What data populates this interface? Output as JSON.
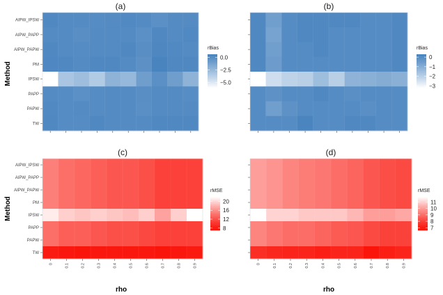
{
  "chart_data": {
    "type": "heatmap",
    "xlabel": "rho",
    "ylabel": "Method",
    "methods": [
      "AIPW_IPSW",
      "AIPW_PAPP",
      "AIPW_PAPW",
      "PM",
      "IPSW",
      "PAPP",
      "PAPW",
      "TW"
    ],
    "rho": [
      "0",
      "0.1",
      "0.2",
      "0.3",
      "0.4",
      "0.5",
      "0.6",
      "0.7",
      "0.8",
      "0.9"
    ],
    "panels": [
      {
        "title": "(a)",
        "legend_title": "rBias",
        "colormap": "blue",
        "legend_ticks": [
          "0.0",
          "−2.5",
          "−5.0"
        ],
        "legend_tick_values": [
          0,
          -2.5,
          -5.0
        ],
        "range": [
          -6.0,
          0.6
        ],
        "values": [
          [
            0.2,
            0.1,
            0.05,
            0.0,
            0.1,
            0.15,
            0.05,
            -0.2,
            0.05,
            0.1
          ],
          [
            0.1,
            0.05,
            -0.1,
            0.05,
            0.1,
            0.05,
            -0.2,
            0.2,
            0.1,
            0.15
          ],
          [
            0.2,
            0.1,
            0.0,
            0.1,
            0.1,
            0.2,
            -0.1,
            0.25,
            0.15,
            0.1
          ],
          [
            0.3,
            0.2,
            0.1,
            0.2,
            0.2,
            0.1,
            -0.3,
            0.5,
            0.2,
            0.2
          ],
          [
            -6.0,
            -3.2,
            -2.8,
            -3.5,
            -2.2,
            -2.5,
            -1.0,
            -0.2,
            -1.0,
            -2.2
          ],
          [
            0.1,
            0.0,
            -0.2,
            0.0,
            0.1,
            0.05,
            -0.1,
            0.1,
            0.1,
            -0.05
          ],
          [
            0.15,
            0.0,
            0.1,
            0.0,
            0.05,
            0.05,
            -0.15,
            0.1,
            0.05,
            0.1
          ],
          [
            0.2,
            0.0,
            0.0,
            0.2,
            0.1,
            0.1,
            0.1,
            0.2,
            0.2,
            0.2
          ]
        ]
      },
      {
        "title": "(b)",
        "legend_title": "rBias",
        "colormap": "blue",
        "legend_ticks": [
          "0",
          "−1",
          "−2",
          "−3"
        ],
        "legend_tick_values": [
          0,
          -1,
          -2,
          -3
        ],
        "range": [
          -3.2,
          0.3
        ],
        "values": [
          [
            0.1,
            -0.6,
            0.0,
            0.1,
            0.1,
            0.1,
            0.1,
            0.0,
            0.0,
            0.1
          ],
          [
            0.1,
            -0.7,
            0.0,
            0.1,
            0.1,
            0.0,
            0.0,
            0.0,
            0.0,
            0.1
          ],
          [
            0.1,
            -0.6,
            0.0,
            0.0,
            0.1,
            0.0,
            0.0,
            0.0,
            0.0,
            0.1
          ],
          [
            0.1,
            -0.5,
            0.0,
            0.0,
            0.0,
            0.0,
            0.0,
            0.0,
            0.0,
            0.1
          ],
          [
            -3.2,
            -2.4,
            -2.1,
            -2.0,
            -1.5,
            -2.0,
            -1.2,
            -1.1,
            -1.0,
            -1.1
          ],
          [
            0.0,
            -0.2,
            0.0,
            0.0,
            0.1,
            0.0,
            -0.1,
            0.0,
            0.0,
            0.0
          ],
          [
            0.0,
            -0.6,
            -0.2,
            0.0,
            0.0,
            0.0,
            0.0,
            -0.1,
            0.0,
            0.0
          ],
          [
            0.0,
            0.0,
            0.0,
            0.2,
            0.0,
            0.0,
            0.1,
            0.1,
            0.0,
            0.0
          ]
        ]
      },
      {
        "title": "(c)",
        "legend_title": "rMSE",
        "colormap": "red",
        "legend_ticks": [
          "20",
          "16",
          "12",
          "8"
        ],
        "legend_tick_values": [
          20,
          16,
          12,
          8
        ],
        "range": [
          7.0,
          22.0
        ],
        "values": [
          [
            15.0,
            14.0,
            13.5,
            13.0,
            12.5,
            12.5,
            12.0,
            11.0,
            11.0,
            11.0
          ],
          [
            15.0,
            14.0,
            13.5,
            13.0,
            12.5,
            12.5,
            12.0,
            11.0,
            11.0,
            11.0
          ],
          [
            15.0,
            14.0,
            13.5,
            13.0,
            12.5,
            12.5,
            12.0,
            11.0,
            11.0,
            11.0
          ],
          [
            15.0,
            14.0,
            13.5,
            13.0,
            12.5,
            12.5,
            12.0,
            11.0,
            11.0,
            11.0
          ],
          [
            21.0,
            19.5,
            19.0,
            19.5,
            19.0,
            18.5,
            19.5,
            17.0,
            19.5,
            22.0
          ],
          [
            14.0,
            13.0,
            13.0,
            12.5,
            12.0,
            12.0,
            11.5,
            11.0,
            11.0,
            11.0
          ],
          [
            14.0,
            13.0,
            13.0,
            12.5,
            12.0,
            12.0,
            11.5,
            11.0,
            11.0,
            11.0
          ],
          [
            8.0,
            7.5,
            7.2,
            7.5,
            7.5,
            7.5,
            7.5,
            7.2,
            7.5,
            7.8
          ]
        ]
      },
      {
        "title": "(d)",
        "legend_title": "rMSE",
        "colormap": "red",
        "legend_ticks": [
          "11",
          "10",
          "9",
          "8",
          "7"
        ],
        "legend_tick_values": [
          11,
          10,
          9,
          8,
          7
        ],
        "range": [
          6.6,
          11.8
        ],
        "values": [
          [
            10.0,
            9.8,
            9.5,
            9.3,
            9.2,
            9.0,
            8.8,
            8.5,
            8.3,
            8.2
          ],
          [
            10.0,
            9.8,
            9.5,
            9.3,
            9.2,
            9.0,
            8.8,
            8.5,
            8.3,
            8.2
          ],
          [
            10.0,
            9.8,
            9.5,
            9.3,
            9.2,
            9.0,
            8.8,
            8.5,
            8.3,
            8.2
          ],
          [
            10.0,
            9.8,
            9.5,
            9.3,
            9.2,
            9.0,
            8.8,
            8.5,
            8.3,
            8.2
          ],
          [
            11.8,
            11.0,
            11.0,
            10.8,
            10.8,
            10.8,
            10.5,
            10.0,
            10.0,
            10.2
          ],
          [
            9.5,
            9.2,
            9.0,
            9.0,
            8.8,
            8.6,
            8.5,
            8.2,
            8.0,
            8.0
          ],
          [
            9.5,
            9.2,
            9.0,
            9.0,
            8.8,
            8.6,
            8.5,
            8.2,
            8.0,
            8.0
          ],
          [
            7.5,
            7.3,
            7.2,
            7.2,
            7.0,
            7.2,
            7.2,
            6.6,
            7.0,
            7.2
          ]
        ]
      }
    ]
  }
}
